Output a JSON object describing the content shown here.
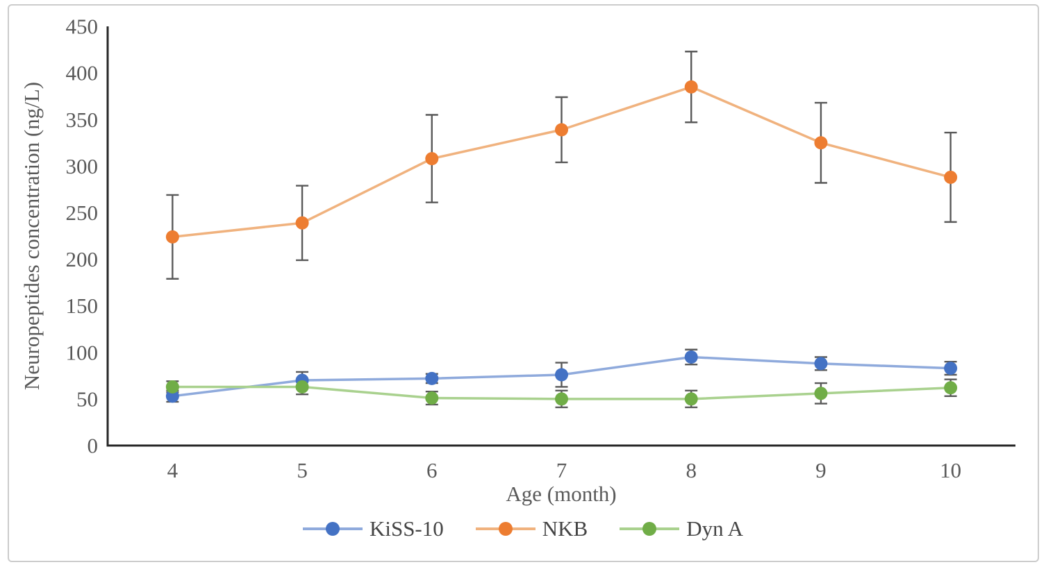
{
  "figure": {
    "background": "#ffffff",
    "border_color": "#cccccc"
  },
  "chart_data": {
    "type": "line",
    "title": "",
    "xlabel": "Age (month)",
    "ylabel": "Neuropeptides concentration (ng/L)",
    "categories": [
      "4",
      "5",
      "6",
      "7",
      "8",
      "9",
      "10"
    ],
    "y_ticks": [
      "0",
      "50",
      "100",
      "150",
      "200",
      "250",
      "300",
      "350",
      "400",
      "450"
    ],
    "ylim": [
      0,
      450
    ],
    "y_step": 50,
    "grid": false,
    "legend_position": "bottom-center",
    "axis_line_color": "#262626",
    "tick_label_color": "#595959",
    "error_bar_color": "#595959",
    "series": [
      {
        "name": "KiSS-10",
        "marker_color": "#4472C4",
        "line_color": "#8FAADC",
        "values": [
          53,
          70,
          72,
          76,
          95,
          88,
          83
        ],
        "errors": [
          6,
          9,
          5,
          13,
          8,
          7,
          7
        ]
      },
      {
        "name": "NKB",
        "marker_color": "#ED7D31",
        "line_color": "#F0B27E",
        "values": [
          224,
          239,
          308,
          339,
          385,
          325,
          288
        ],
        "errors": [
          45,
          40,
          47,
          35,
          38,
          43,
          48
        ]
      },
      {
        "name": "Dyn A",
        "marker_color": "#70AD47",
        "line_color": "#A9D18E",
        "values": [
          63,
          63,
          51,
          50,
          50,
          56,
          62
        ],
        "errors": [
          6,
          8,
          7,
          9,
          9,
          11,
          9
        ]
      }
    ]
  }
}
